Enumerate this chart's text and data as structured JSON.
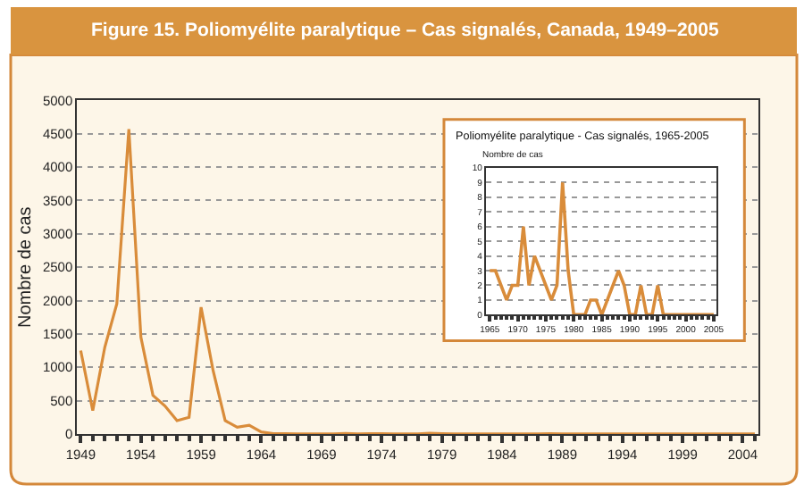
{
  "chart_data": [
    {
      "type": "line",
      "title": "Figure 15. Poliomyélite paralytique – Cas signalés, Canada, 1949–2005",
      "ylabel": "Nombre de cas",
      "x": [
        1949,
        1950,
        1951,
        1952,
        1953,
        1954,
        1955,
        1956,
        1957,
        1958,
        1959,
        1960,
        1961,
        1962,
        1963,
        1964,
        1965,
        1966,
        1967,
        1968,
        1969,
        1970,
        1971,
        1972,
        1973,
        1974,
        1975,
        1976,
        1977,
        1978,
        1979,
        1980,
        1981,
        1982,
        1983,
        1984,
        1985,
        1986,
        1987,
        1988,
        1989,
        1990,
        1991,
        1992,
        1993,
        1994,
        1995,
        1996,
        1997,
        1998,
        1999,
        2000,
        2001,
        2002,
        2003,
        2004,
        2005
      ],
      "series": [
        {
          "color": "#d98c3a",
          "values": [
            1250,
            350,
            1300,
            1950,
            4570,
            1450,
            580,
            420,
            200,
            250,
            1900,
            950,
            200,
            100,
            130,
            30,
            3,
            3,
            2,
            1,
            2,
            2,
            6,
            2,
            4,
            3,
            2,
            1,
            2,
            9,
            3,
            0,
            0,
            0,
            1,
            1,
            0,
            1,
            2,
            3,
            2,
            0,
            0,
            2,
            0,
            0,
            2,
            0,
            0,
            0,
            0,
            0,
            0,
            0,
            0,
            0,
            0
          ]
        }
      ],
      "xlim": [
        1948.7,
        2005.3
      ],
      "xticks": [
        1949,
        1954,
        1959,
        1964,
        1969,
        1974,
        1979,
        1984,
        1989,
        1994,
        1999,
        2004
      ],
      "ylim": [
        0,
        5000
      ],
      "yticks": [
        0,
        500,
        1000,
        1500,
        2000,
        2500,
        3000,
        3500,
        4000,
        4500,
        5000
      ],
      "grid": "y",
      "line_style": "solid",
      "marker": "none"
    },
    {
      "type": "line",
      "title": "Poliomyélite paralytique - Cas signalés, 1965-2005",
      "ylabel": "Nombre de cas",
      "x": [
        1965,
        1966,
        1967,
        1968,
        1969,
        1970,
        1971,
        1972,
        1973,
        1974,
        1975,
        1976,
        1977,
        1978,
        1979,
        1980,
        1981,
        1982,
        1983,
        1984,
        1985,
        1986,
        1987,
        1988,
        1989,
        1990,
        1991,
        1992,
        1993,
        1994,
        1995,
        1996,
        1997,
        1998,
        1999,
        2000,
        2001,
        2002,
        2003,
        2004,
        2005
      ],
      "series": [
        {
          "color": "#d98c3a",
          "values": [
            3,
            3,
            2,
            1,
            2,
            2,
            6,
            2,
            4,
            3,
            2,
            1,
            2,
            9,
            3,
            0,
            0,
            0,
            1,
            1,
            0,
            1,
            2,
            3,
            2,
            0,
            0,
            2,
            0,
            0,
            2,
            0,
            0,
            0,
            0,
            0,
            0,
            0,
            0,
            0,
            0
          ]
        }
      ],
      "xlim": [
        1964.3,
        2005.5
      ],
      "xticks": [
        1965,
        1970,
        1975,
        1980,
        1985,
        1990,
        1995,
        2000,
        2005
      ],
      "ylim": [
        0,
        10
      ],
      "yticks": [
        0,
        1,
        2,
        3,
        4,
        5,
        6,
        7,
        8,
        9,
        10
      ],
      "grid": "y",
      "line_style": "solid",
      "marker": "none"
    }
  ]
}
